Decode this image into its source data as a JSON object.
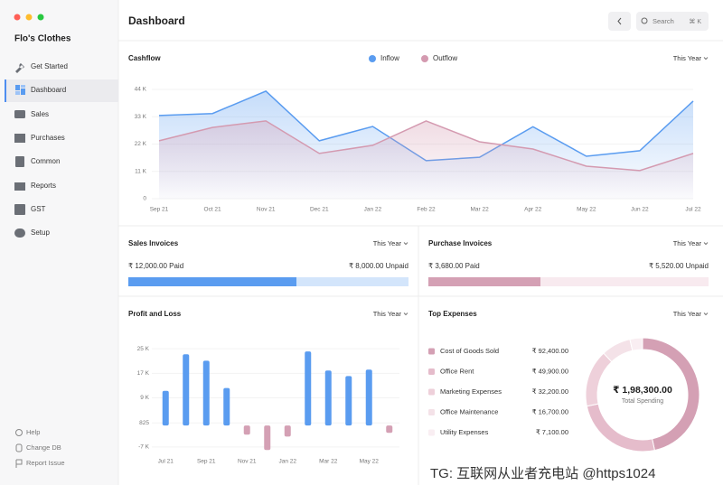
{
  "sidebar": {
    "app_name": "Flo's Clothes",
    "nav": [
      "Get Started",
      "Dashboard",
      "Sales",
      "Purchases",
      "Common",
      "Reports",
      "GST",
      "Setup"
    ],
    "footer": [
      "Help",
      "Change DB",
      "Report Issue"
    ]
  },
  "header": {
    "title": "Dashboard",
    "search": "Search",
    "shortcut": "⌘ K"
  },
  "chart_data": [
    {
      "type": "line",
      "title": "Cashflow",
      "period": "This Year",
      "categories": [
        "Sep 21",
        "Oct 21",
        "Nov 21",
        "Dec 21",
        "Jan 22",
        "Feb 22",
        "Mar 22",
        "Apr 22",
        "May 22",
        "Jun 22",
        "Jul 22"
      ],
      "series": [
        {
          "name": "Inflow",
          "color": "#5a9cf0",
          "values": [
            33500,
            34300,
            43300,
            23300,
            29100,
            15300,
            16700,
            29000,
            17100,
            19300,
            39300
          ]
        },
        {
          "name": "Outflow",
          "color": "#d49ab0",
          "values": [
            23300,
            28700,
            31300,
            18200,
            21500,
            31300,
            22900,
            20000,
            13100,
            11300,
            18200
          ]
        }
      ],
      "ylim": [
        0,
        44000
      ],
      "yticks": [
        0,
        {
          "value": 11000,
          "label": "11 K"
        },
        {
          "value": 22000,
          "label": "22 K"
        },
        {
          "value": 33000,
          "label": "33 K"
        },
        {
          "value": 44000,
          "label": "44 K"
        }
      ],
      "grid": true
    },
    {
      "type": "progress",
      "title": "Sales Invoices",
      "period": "This Year",
      "values": [
        12000,
        8000
      ],
      "value_labels": [
        "₹ 12,000.00 Paid",
        "₹ 8,000.00 Unpaid"
      ],
      "colors": [
        "#5a9cf0",
        "#d3e5fb"
      ]
    },
    {
      "type": "progress",
      "title": "Purchase Invoices",
      "period": "This Year",
      "values": [
        3680,
        5520
      ],
      "value_labels": [
        "₹ 3,680.00 Paid",
        "₹ 5,520.00 Unpaid"
      ],
      "colors": [
        "#d4a0b4",
        "#f8eaef"
      ]
    },
    {
      "type": "bar",
      "title": "Profit and Loss",
      "period": "This Year",
      "categories": [
        "Jul 21",
        null,
        "Sep 21",
        null,
        "Nov 21",
        null,
        "Jan 22",
        null,
        "Mar 22",
        null,
        "May 22",
        null
      ],
      "values": [
        11300,
        23200,
        21100,
        12200,
        -3000,
        -8000,
        -3600,
        24100,
        17900,
        16100,
        18200,
        -2400
      ],
      "colors": {
        "positive": "#5a9cf0",
        "negative": "#d4a0b4"
      },
      "ylim": [
        -8500,
        26800
      ],
      "yticks": [
        {
          "value": -7000,
          "label": "-7 K"
        },
        825,
        {
          "value": 9000,
          "label": "9 K"
        },
        {
          "value": 17000,
          "label": "17 K"
        },
        {
          "value": 25000,
          "label": "25 K"
        }
      ],
      "grid": true
    },
    {
      "type": "pie",
      "title": "Top Expenses",
      "period": "This Year",
      "categories": [
        "Cost of Goods Sold",
        "Office Rent",
        "Marketing Expenses",
        "Office Maintenance",
        "Utility Expenses"
      ],
      "values": [
        92400,
        49900,
        32200,
        16700,
        7100
      ],
      "value_labels": [
        "₹ 92,400.00",
        "₹ 49,900.00",
        "₹ 32,200.00",
        "₹ 16,700.00",
        "₹ 7,100.00"
      ],
      "colors": [
        "#d4a0b4",
        "#e5bccb",
        "#eed0da",
        "#f4e2e8",
        "#f9eef2"
      ],
      "total": {
        "value": 198300,
        "label": "₹ 1,98,300.00"
      },
      "total_label": "Total Spending"
    }
  ],
  "watermark": "TG: 互联网从业者充电站 @https1024"
}
